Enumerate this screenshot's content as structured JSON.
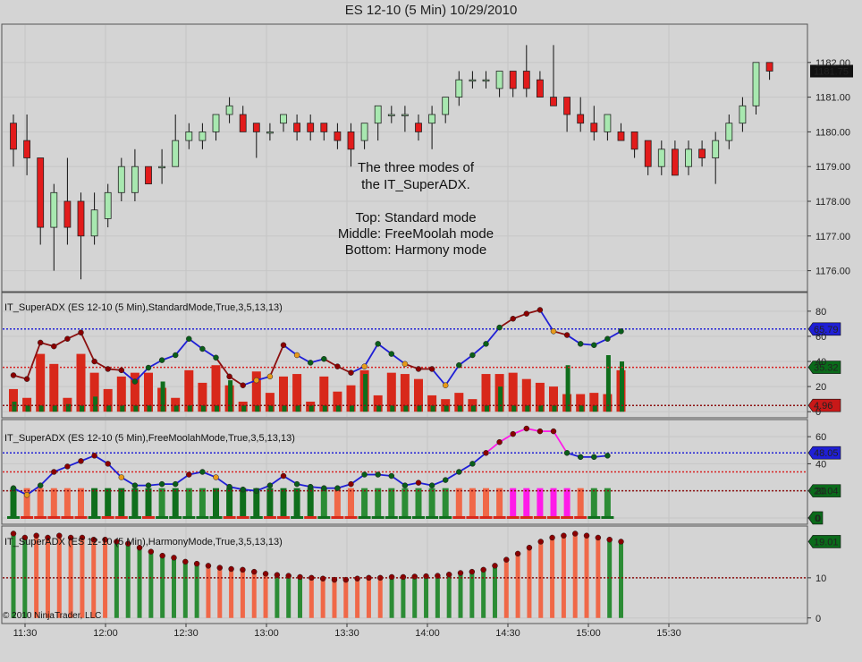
{
  "window": {
    "title": "ES 12-10 (5 Min)  10/29/2010"
  },
  "copyright": "© 2010 NinjaTrader, LLC",
  "colors": {
    "background": "#d4d4d4",
    "up_candle": "#a8e8b0",
    "down_candle": "#e21b1b",
    "line_blue": "#1f1fd6",
    "line_red": "#8b1010",
    "dot_red": "#8b0000",
    "dot_green": "#0a5e1a",
    "dot_orange": "#e89a1a",
    "bar_dark_green": "#0f6e1c",
    "bar_green": "#2c8c35",
    "bar_red": "#d8281a",
    "bar_salmon": "#f06848",
    "bar_magenta": "#ff1ae8",
    "level_blue": "#1f1fd6",
    "level_red": "#d82020",
    "level_darkred": "#8b1010"
  },
  "annotation": {
    "lines": [
      "The three modes of",
      "the IT_SuperADX.",
      "",
      "Top: Standard mode",
      "Middle: FreeMoolah mode",
      "Bottom: Harmony mode"
    ]
  },
  "chart_data": [
    {
      "type": "candlestick",
      "title": "ES 12-10 (5 Min)  10/29/2010",
      "yticks": [
        "1176.00",
        "1177.00",
        "1178.00",
        "1179.00",
        "1180.00",
        "1181.00",
        "1182.00"
      ],
      "ylim": [
        1175.5,
        1183.0
      ],
      "last_price_label": "1181.75",
      "xticks": [
        "11:30",
        "12:00",
        "12:30",
        "13:00",
        "13:30",
        "14:00",
        "14:30",
        "15:00",
        "15:30"
      ],
      "candles": [
        {
          "o": 1180.25,
          "h": 1180.5,
          "l": 1179.0,
          "c": 1179.5
        },
        {
          "o": 1179.75,
          "h": 1180.5,
          "l": 1178.75,
          "c": 1179.25
        },
        {
          "o": 1179.25,
          "h": 1179.25,
          "l": 1176.75,
          "c": 1177.25
        },
        {
          "o": 1177.25,
          "h": 1178.5,
          "l": 1176.0,
          "c": 1178.25
        },
        {
          "o": 1178.0,
          "h": 1179.25,
          "l": 1176.75,
          "c": 1177.25
        },
        {
          "o": 1178.0,
          "h": 1178.25,
          "l": 1175.75,
          "c": 1177.0
        },
        {
          "o": 1177.0,
          "h": 1178.25,
          "l": 1176.75,
          "c": 1177.75
        },
        {
          "o": 1177.5,
          "h": 1178.5,
          "l": 1177.25,
          "c": 1178.25
        },
        {
          "o": 1178.25,
          "h": 1179.25,
          "l": 1178.0,
          "c": 1179.0
        },
        {
          "o": 1178.25,
          "h": 1179.5,
          "l": 1178.0,
          "c": 1179.0
        },
        {
          "o": 1179.0,
          "h": 1179.0,
          "l": 1178.5,
          "c": 1178.5
        },
        {
          "o": 1179.0,
          "h": 1179.5,
          "l": 1178.5,
          "c": 1179.0
        },
        {
          "o": 1179.0,
          "h": 1180.5,
          "l": 1179.0,
          "c": 1179.75
        },
        {
          "o": 1179.75,
          "h": 1180.25,
          "l": 1179.5,
          "c": 1180.0
        },
        {
          "o": 1179.75,
          "h": 1180.25,
          "l": 1179.5,
          "c": 1180.0
        },
        {
          "o": 1180.0,
          "h": 1180.5,
          "l": 1179.75,
          "c": 1180.5
        },
        {
          "o": 1180.5,
          "h": 1181.0,
          "l": 1180.25,
          "c": 1180.75
        },
        {
          "o": 1180.5,
          "h": 1180.75,
          "l": 1180.0,
          "c": 1180.0
        },
        {
          "o": 1180.25,
          "h": 1180.25,
          "l": 1179.25,
          "c": 1180.0
        },
        {
          "o": 1180.0,
          "h": 1180.25,
          "l": 1179.75,
          "c": 1180.0
        },
        {
          "o": 1180.25,
          "h": 1180.5,
          "l": 1180.0,
          "c": 1180.5
        },
        {
          "o": 1180.25,
          "h": 1180.5,
          "l": 1179.75,
          "c": 1180.0
        },
        {
          "o": 1180.25,
          "h": 1180.5,
          "l": 1179.75,
          "c": 1180.0
        },
        {
          "o": 1180.25,
          "h": 1180.25,
          "l": 1179.75,
          "c": 1180.0
        },
        {
          "o": 1180.0,
          "h": 1180.25,
          "l": 1179.5,
          "c": 1179.75
        },
        {
          "o": 1180.0,
          "h": 1180.25,
          "l": 1179.0,
          "c": 1179.5
        },
        {
          "o": 1179.75,
          "h": 1180.25,
          "l": 1179.5,
          "c": 1180.25
        },
        {
          "o": 1180.25,
          "h": 1180.75,
          "l": 1179.75,
          "c": 1180.75
        },
        {
          "o": 1180.5,
          "h": 1180.75,
          "l": 1180.25,
          "c": 1180.5
        },
        {
          "o": 1180.5,
          "h": 1180.75,
          "l": 1180.0,
          "c": 1180.5
        },
        {
          "o": 1180.25,
          "h": 1180.5,
          "l": 1179.75,
          "c": 1180.0
        },
        {
          "o": 1180.25,
          "h": 1180.75,
          "l": 1179.5,
          "c": 1180.5
        },
        {
          "o": 1180.5,
          "h": 1181.0,
          "l": 1180.25,
          "c": 1181.0
        },
        {
          "o": 1181.0,
          "h": 1181.75,
          "l": 1180.75,
          "c": 1181.5
        },
        {
          "o": 1181.5,
          "h": 1181.75,
          "l": 1181.25,
          "c": 1181.5
        },
        {
          "o": 1181.5,
          "h": 1181.75,
          "l": 1181.25,
          "c": 1181.5
        },
        {
          "o": 1181.25,
          "h": 1181.75,
          "l": 1181.0,
          "c": 1181.75
        },
        {
          "o": 1181.75,
          "h": 1181.75,
          "l": 1181.0,
          "c": 1181.25
        },
        {
          "o": 1181.75,
          "h": 1182.5,
          "l": 1181.0,
          "c": 1181.25
        },
        {
          "o": 1181.5,
          "h": 1181.75,
          "l": 1181.0,
          "c": 1181.0
        },
        {
          "o": 1181.0,
          "h": 1182.5,
          "l": 1180.75,
          "c": 1180.75
        },
        {
          "o": 1181.0,
          "h": 1181.0,
          "l": 1180.0,
          "c": 1180.5
        },
        {
          "o": 1180.5,
          "h": 1181.0,
          "l": 1180.0,
          "c": 1180.25
        },
        {
          "o": 1180.25,
          "h": 1180.75,
          "l": 1179.75,
          "c": 1180.0
        },
        {
          "o": 1180.0,
          "h": 1180.5,
          "l": 1179.75,
          "c": 1180.5
        },
        {
          "o": 1180.0,
          "h": 1180.25,
          "l": 1179.75,
          "c": 1179.75
        },
        {
          "o": 1180.0,
          "h": 1180.0,
          "l": 1179.25,
          "c": 1179.5
        },
        {
          "o": 1179.75,
          "h": 1179.75,
          "l": 1178.75,
          "c": 1179.0
        },
        {
          "o": 1179.0,
          "h": 1179.75,
          "l": 1178.75,
          "c": 1179.5
        },
        {
          "o": 1179.5,
          "h": 1179.75,
          "l": 1178.75,
          "c": 1178.75
        },
        {
          "o": 1179.0,
          "h": 1179.75,
          "l": 1178.75,
          "c": 1179.5
        },
        {
          "o": 1179.5,
          "h": 1179.75,
          "l": 1179.0,
          "c": 1179.25
        },
        {
          "o": 1179.25,
          "h": 1180.0,
          "l": 1178.5,
          "c": 1179.75
        },
        {
          "o": 1179.75,
          "h": 1180.5,
          "l": 1179.5,
          "c": 1180.25
        },
        {
          "o": 1180.25,
          "h": 1181.0,
          "l": 1180.0,
          "c": 1180.75
        },
        {
          "o": 1180.75,
          "h": 1182.0,
          "l": 1180.5,
          "c": 1182.0
        },
        {
          "o": 1182.0,
          "h": 1182.0,
          "l": 1181.5,
          "c": 1181.75
        }
      ]
    },
    {
      "type": "line+bar",
      "title": "IT_SuperADX (ES 12-10 (5 Min),StandardMode,True,3,5,13,13)",
      "yticks": [
        0,
        20,
        40,
        60,
        80
      ],
      "ylim": [
        -2,
        92
      ],
      "levels": [
        {
          "value": 65.79,
          "label": "65.79",
          "color": "blue"
        },
        {
          "value": 35.32,
          "label": "35.32",
          "color": "red"
        },
        {
          "value": 4.96,
          "label": "4.96",
          "color": "darkred"
        }
      ],
      "line": [
        29,
        26,
        55,
        52,
        58,
        63,
        40,
        34,
        33,
        24,
        35,
        41,
        45,
        58,
        50,
        43,
        28,
        21,
        25,
        28,
        53,
        45,
        39,
        42,
        36,
        31,
        36,
        54,
        46,
        38,
        34,
        34,
        21,
        37,
        45,
        54,
        67,
        74,
        78,
        81,
        64,
        61,
        54,
        53,
        58,
        64
      ],
      "dot_colors": [
        "d",
        "d",
        "d",
        "d",
        "d",
        "d",
        "d",
        "d",
        "d",
        "g",
        "g",
        "g",
        "g",
        "g",
        "g",
        "g",
        "d",
        "d",
        "o",
        "o",
        "d",
        "o",
        "g",
        "g",
        "d",
        "d",
        "o",
        "g",
        "g",
        "o",
        "d",
        "d",
        "o",
        "g",
        "g",
        "g",
        "g",
        "d",
        "d",
        "d",
        "o",
        "d",
        "g",
        "g",
        "g",
        "g"
      ],
      "bars": [
        18,
        11,
        46,
        38,
        11,
        46,
        31,
        18,
        28,
        31,
        31,
        19,
        11,
        33,
        23,
        37,
        21,
        8,
        32,
        15,
        28,
        30,
        8,
        28,
        16,
        21,
        33,
        13,
        31,
        30,
        26,
        13,
        10,
        15,
        10,
        30,
        30,
        31,
        26,
        23,
        20,
        14,
        14,
        15,
        14,
        33
      ],
      "bar_colors": [
        "r",
        "d",
        "r",
        "r",
        "d",
        "r",
        "r",
        "d",
        "r",
        "d",
        "r",
        "d",
        "d",
        "d",
        "r",
        "d",
        "r",
        "d",
        "r",
        "d",
        "r",
        "r",
        "d",
        "r",
        "r",
        "r",
        "d",
        "d",
        "r",
        "r",
        "r",
        "d",
        "r",
        "r",
        "r",
        "r",
        "r",
        "r",
        "r",
        "r",
        "d",
        "d",
        "d",
        "d",
        "d",
        "d"
      ],
      "bars2": [
        8,
        5,
        5,
        5,
        6,
        5,
        12,
        5,
        5,
        5,
        5,
        24,
        5,
        5,
        5,
        5,
        25,
        5,
        5,
        5,
        5,
        5,
        5,
        5,
        5,
        5,
        30,
        5,
        5,
        5,
        5,
        5,
        5,
        5,
        5,
        5,
        20,
        5,
        5,
        5,
        5,
        37,
        5,
        5,
        45,
        40
      ]
    },
    {
      "type": "line+bar",
      "title": "IT_SuperADX (ES 12-10 (5 Min),FreeMoolahMode,True,3,5,13,13)",
      "yticks": [
        0,
        20,
        40,
        60
      ],
      "ylim": [
        -2,
        70
      ],
      "levels": [
        {
          "value": 48.05,
          "label": "48.05",
          "color": "blue"
        },
        {
          "value": 20.04,
          "label": "20.04",
          "color": "darkred"
        },
        {
          "value": 0,
          "label": "0",
          "color": "green"
        }
      ],
      "line": [
        22,
        17,
        24,
        34,
        38,
        42,
        46,
        40,
        30,
        24,
        24,
        25,
        25,
        32,
        34,
        30,
        23,
        21,
        20,
        24,
        31,
        25,
        23,
        22,
        22,
        25,
        32,
        32,
        31,
        24,
        26,
        24,
        28,
        34,
        40,
        48,
        56,
        62,
        66,
        64,
        64,
        48,
        45,
        45,
        46
      ],
      "dot_colors": [
        "g",
        "o",
        "g",
        "d",
        "d",
        "d",
        "d",
        "d",
        "o",
        "g",
        "g",
        "g",
        "g",
        "d",
        "g",
        "o",
        "g",
        "g",
        "g",
        "g",
        "d",
        "g",
        "g",
        "g",
        "g",
        "d",
        "g",
        "g",
        "g",
        "g",
        "d",
        "g",
        "g",
        "g",
        "g",
        "d",
        "d",
        "d",
        "d",
        "d",
        "d",
        "g",
        "g",
        "g",
        "g"
      ],
      "bars": [
        22,
        22,
        22,
        22,
        22,
        22,
        22,
        22,
        22,
        22,
        22,
        22,
        22,
        22,
        22,
        22,
        22,
        22,
        22,
        22,
        22,
        22,
        22,
        22,
        22,
        22,
        22,
        22,
        22,
        22,
        22,
        22,
        22,
        22,
        22,
        22,
        22,
        22,
        22,
        22,
        22,
        22,
        22,
        22,
        22
      ],
      "bar_colors": [
        "d",
        "s",
        "s",
        "s",
        "s",
        "s",
        "d",
        "d",
        "d",
        "d",
        "d",
        "g",
        "d",
        "g",
        "g",
        "d",
        "d",
        "d",
        "d",
        "d",
        "d",
        "d",
        "d",
        "g",
        "s",
        "s",
        "g",
        "g",
        "g",
        "g",
        "g",
        "g",
        "g",
        "s",
        "s",
        "s",
        "s",
        "m",
        "m",
        "m",
        "m",
        "m",
        "s",
        "g",
        "g"
      ]
    },
    {
      "type": "bar",
      "title": "IT_SuperADX (ES 12-10 (5 Min),HarmonyMode,True,3,5,13,13)",
      "yticks": [
        0,
        10
      ],
      "ylim": [
        -0.5,
        22
      ],
      "levels": [
        {
          "value": 19.01,
          "label": "19.01",
          "color": "green"
        },
        {
          "value": 10,
          "label": "",
          "color": "darkred"
        }
      ],
      "values": [
        21,
        20,
        20.5,
        20,
        20.5,
        20,
        20,
        19.5,
        19.5,
        19,
        18.5,
        17.5,
        16.5,
        15.5,
        15,
        14,
        13.5,
        13,
        12.5,
        12.2,
        12,
        11.5,
        11,
        10.7,
        10.5,
        10.2,
        10,
        9.8,
        9.5,
        9.5,
        9.8,
        10,
        10,
        10.2,
        10.2,
        10.3,
        10.4,
        10.5,
        10.8,
        11.2,
        11.5,
        12,
        13,
        14.5,
        16,
        17.5,
        19,
        20,
        20.5,
        21,
        20.5,
        20,
        19.5,
        19
      ],
      "bar_colors": [
        "g",
        "g",
        "s",
        "s",
        "s",
        "s",
        "s",
        "s",
        "s",
        "g",
        "g",
        "g",
        "g",
        "g",
        "g",
        "g",
        "g",
        "s",
        "s",
        "s",
        "s",
        "s",
        "s",
        "g",
        "g",
        "g",
        "s",
        "s",
        "s",
        "s",
        "s",
        "s",
        "s",
        "g",
        "g",
        "g",
        "g",
        "g",
        "g",
        "g",
        "g",
        "g",
        "g",
        "s",
        "s",
        "s",
        "s",
        "s",
        "s",
        "s",
        "s",
        "s",
        "g",
        "g"
      ]
    }
  ]
}
